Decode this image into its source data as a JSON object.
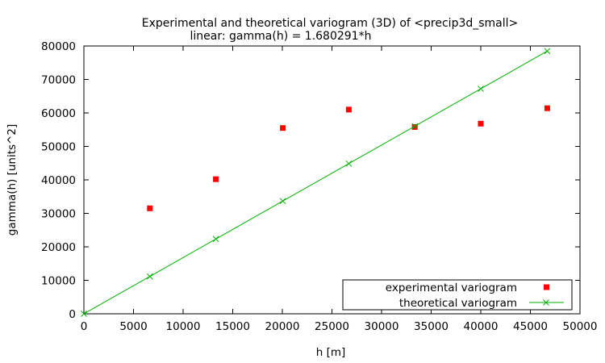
{
  "chart_data": {
    "type": "scatter",
    "title": "Experimental and theoretical variogram (3D) of <precip3d_small>",
    "subtitle": "linear: gamma(h) = 1.680291*h",
    "xlabel": "h [m]",
    "ylabel": "gamma(h) [units^2]",
    "xlim": [
      0,
      50000
    ],
    "ylim": [
      0,
      80000
    ],
    "xticks": [
      0,
      5000,
      10000,
      15000,
      20000,
      25000,
      30000,
      35000,
      40000,
      45000,
      50000
    ],
    "yticks": [
      0,
      10000,
      20000,
      30000,
      40000,
      50000,
      60000,
      70000,
      80000
    ],
    "grid": false,
    "legend_position": "bottom-right",
    "series": [
      {
        "name": "experimental variogram",
        "kind": "points",
        "color": "#ff0000",
        "x": [
          6650,
          13300,
          20050,
          26700,
          33350,
          40000,
          46700
        ],
        "y": [
          31500,
          40200,
          55500,
          61000,
          55800,
          56800,
          61400
        ]
      },
      {
        "name": "theoretical variogram",
        "kind": "linespoints",
        "color": "#00b000",
        "x": [
          0,
          6650,
          13300,
          20050,
          26700,
          33350,
          40000,
          46700
        ],
        "y": [
          0,
          11174,
          22348,
          33690,
          44864,
          56038,
          67212,
          78470
        ]
      }
    ]
  }
}
